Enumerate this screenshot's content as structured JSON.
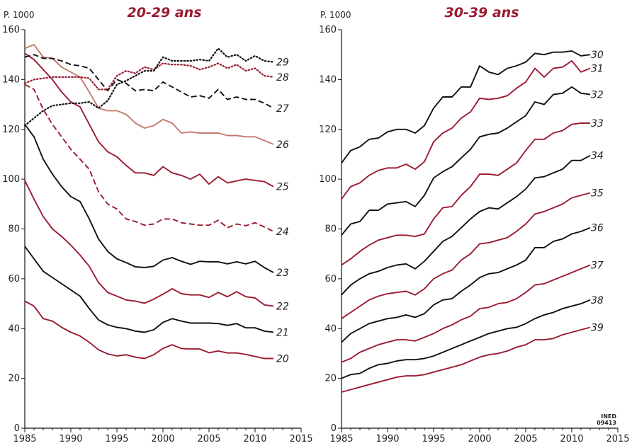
{
  "colors": {
    "dark_red": "#9b1b30",
    "light_red": "#c47a6e",
    "black": "#111111"
  },
  "credit": {
    "line1": "INED",
    "line2": "09413"
  },
  "chart_data": [
    {
      "type": "line",
      "title": "20-29 ans",
      "ylabel": "P. 1000",
      "xlim": [
        1985,
        2015
      ],
      "ylim": [
        0,
        160
      ],
      "x_ticks": [
        "1985",
        "1990",
        "1995",
        "2000",
        "2005",
        "2010",
        "2015"
      ],
      "y_ticks": [
        "0",
        "20",
        "40",
        "60",
        "80",
        "100",
        "120",
        "140",
        "160"
      ],
      "x": [
        1985,
        1986,
        1987,
        1988,
        1989,
        1990,
        1991,
        1992,
        1993,
        1994,
        1995,
        1996,
        1997,
        1998,
        1999,
        2000,
        2001,
        2002,
        2003,
        2004,
        2005,
        2006,
        2007,
        2008,
        2009,
        2010,
        2011,
        2012
      ],
      "series": [
        {
          "name": "20",
          "color": "dark_red",
          "style": "solid",
          "values": [
            51,
            49,
            44,
            43,
            40.5,
            38.5,
            37,
            34.5,
            31.5,
            29.8,
            29,
            29.5,
            28.5,
            28,
            29.5,
            32,
            33.5,
            32,
            31.8,
            31.8,
            30.3,
            31,
            30.2,
            30.2,
            29.6,
            28.8,
            28,
            28
          ]
        },
        {
          "name": "21",
          "color": "black",
          "style": "solid",
          "values": [
            73,
            68,
            63,
            60.5,
            58,
            55.5,
            53,
            48,
            43.5,
            41.5,
            40.5,
            40,
            39,
            38.5,
            39.5,
            42.5,
            44,
            43,
            42.2,
            42.2,
            42.2,
            42,
            41.3,
            42,
            40.3,
            40.3,
            39,
            38.5
          ]
        },
        {
          "name": "22",
          "color": "dark_red",
          "style": "solid",
          "values": [
            99.5,
            92,
            85,
            80,
            77,
            73.5,
            69.5,
            65,
            58.5,
            54.5,
            53,
            51.5,
            51,
            50.2,
            51.8,
            53.8,
            56,
            54,
            53.5,
            53.5,
            52.5,
            54.5,
            52.8,
            54.8,
            52.8,
            52.3,
            49.5,
            49
          ]
        },
        {
          "name": "23",
          "color": "black",
          "style": "solid",
          "values": [
            122,
            117,
            108,
            102,
            97,
            93,
            91,
            84,
            76,
            71,
            68,
            66.5,
            64.8,
            64.5,
            65,
            67.5,
            68.5,
            67,
            65.8,
            67,
            66.8,
            66.8,
            66,
            66.8,
            66,
            67,
            64.5,
            62.5
          ]
        },
        {
          "name": "24",
          "color": "dark_red",
          "style": "dashed",
          "values": [
            138,
            136,
            128,
            122,
            117,
            112,
            108,
            104,
            95,
            90,
            88,
            84,
            83,
            81.5,
            82,
            84,
            84,
            82.5,
            82,
            81.5,
            81.5,
            83.5,
            80.5,
            82,
            81.3,
            82.5,
            80.8,
            79
          ]
        },
        {
          "name": "25",
          "color": "dark_red",
          "style": "solid",
          "values": [
            150.5,
            148,
            144,
            140,
            135,
            131,
            129,
            122,
            115,
            111,
            109,
            105.5,
            102.5,
            102.5,
            101.5,
            105,
            102.5,
            101.5,
            100,
            102,
            98,
            101,
            98.5,
            99.3,
            100,
            99.5,
            99,
            97
          ]
        },
        {
          "name": "26",
          "color": "light_red",
          "style": "solid",
          "values": [
            152.5,
            154,
            149,
            148.5,
            145,
            143,
            141,
            135,
            128.5,
            127.5,
            127.5,
            126,
            122.5,
            120.5,
            121.5,
            124,
            122.5,
            118.5,
            119,
            118.5,
            118.5,
            118.5,
            117.5,
            117.5,
            117,
            117,
            115.5,
            114
          ]
        },
        {
          "name": "27",
          "color": "black",
          "style": "dashed",
          "values": [
            149,
            150,
            148.5,
            148.5,
            147.5,
            146,
            145.5,
            144.5,
            140,
            135.5,
            140,
            138.5,
            135.5,
            136,
            135.5,
            139,
            137,
            135,
            133,
            133.5,
            132.5,
            136,
            132,
            133,
            132,
            132,
            130.5,
            128.5
          ]
        },
        {
          "name": "28",
          "color": "dark_red",
          "style": "dotted",
          "values": [
            138.5,
            140,
            140.5,
            141,
            141,
            141,
            141,
            140.5,
            136,
            136,
            141.5,
            143.5,
            142.5,
            145,
            144,
            146.5,
            146,
            146,
            145.5,
            144,
            145,
            146.5,
            144.5,
            146,
            143.5,
            144.5,
            141.5,
            141
          ]
        },
        {
          "name": "29",
          "color": "black",
          "style": "dotted",
          "values": [
            121.5,
            124.5,
            127.5,
            129.5,
            130,
            130.5,
            130.5,
            131,
            128.5,
            131.5,
            138,
            139.5,
            141.5,
            143.5,
            143.5,
            149,
            147.5,
            147.5,
            147.5,
            148,
            147.5,
            152.5,
            149,
            150,
            147.5,
            149.5,
            147.5,
            147
          ]
        }
      ]
    },
    {
      "type": "line",
      "title": "30-39 ans",
      "ylabel": "P. 1000",
      "xlim": [
        1985,
        2015
      ],
      "ylim": [
        0,
        160
      ],
      "x_ticks": [
        "1985",
        "1990",
        "1995",
        "2000",
        "2005",
        "2010",
        "2015"
      ],
      "y_ticks": [
        "0",
        "20",
        "40",
        "60",
        "80",
        "100",
        "120",
        "140",
        "160"
      ],
      "x": [
        1985,
        1986,
        1987,
        1988,
        1989,
        1990,
        1991,
        1992,
        1993,
        1994,
        1995,
        1996,
        1997,
        1998,
        1999,
        2000,
        2001,
        2002,
        2003,
        2004,
        2005,
        2006,
        2007,
        2008,
        2009,
        2010,
        2011,
        2012
      ],
      "series": [
        {
          "name": "30",
          "color": "black",
          "style": "solid",
          "values": [
            106.5,
            111.5,
            113,
            116,
            116.5,
            119,
            120,
            120,
            118.5,
            121.5,
            128.5,
            133,
            133,
            137,
            137,
            145.5,
            143,
            142,
            144.5,
            145.5,
            147,
            150.5,
            150,
            151,
            151,
            151.5,
            149.5,
            150
          ]
        },
        {
          "name": "31",
          "color": "dark_red",
          "style": "solid",
          "values": [
            92,
            97,
            98.5,
            101.5,
            103.5,
            104.5,
            104.5,
            106,
            104,
            107,
            115,
            118.5,
            120.5,
            124.5,
            127,
            132.5,
            132,
            132.5,
            133.5,
            136.5,
            139,
            144.5,
            141,
            144.5,
            145,
            147.5,
            143,
            144.5
          ]
        },
        {
          "name": "32",
          "color": "black",
          "style": "solid",
          "values": [
            77.5,
            82,
            83,
            87.5,
            87.5,
            90,
            90.5,
            91,
            89,
            93.5,
            100.5,
            103,
            105,
            108.5,
            112,
            117,
            118,
            118.5,
            120.5,
            123,
            125.5,
            131,
            130,
            134,
            134.5,
            137,
            134.5,
            134
          ]
        },
        {
          "name": "33",
          "color": "dark_red",
          "style": "solid",
          "values": [
            65.5,
            68,
            71,
            73.5,
            75.5,
            76.5,
            77.5,
            77.5,
            77,
            78,
            84,
            88.5,
            89,
            93.5,
            97,
            102,
            102,
            101.5,
            104,
            106.5,
            111.5,
            116,
            116,
            118.5,
            119.5,
            122,
            122.5,
            122.5
          ]
        },
        {
          "name": "34",
          "color": "black",
          "style": "solid",
          "values": [
            53.5,
            57.5,
            60,
            62,
            63,
            64.5,
            65.5,
            66,
            64,
            67,
            71,
            75,
            77,
            80.5,
            84,
            87,
            88.5,
            88,
            90.5,
            93,
            96,
            100.5,
            101,
            102.5,
            104,
            107.5,
            107.5,
            109.5
          ]
        },
        {
          "name": "35",
          "color": "dark_red",
          "style": "solid",
          "values": [
            44,
            46.5,
            49,
            51.5,
            53,
            54,
            54.5,
            55,
            53.5,
            56,
            60,
            62,
            63.5,
            67.5,
            70,
            74,
            74.5,
            75.5,
            76.5,
            79,
            82,
            86,
            87,
            88.5,
            90,
            92.5,
            93.5,
            94.5
          ]
        },
        {
          "name": "36",
          "color": "black",
          "style": "solid",
          "values": [
            34.5,
            38,
            40,
            42,
            43,
            44,
            44.5,
            45.5,
            44.5,
            46,
            49.5,
            51.5,
            52,
            55,
            57.5,
            60.5,
            62,
            62.5,
            64,
            65.5,
            67.5,
            72.5,
            72.5,
            75,
            76,
            78,
            79,
            80.5
          ]
        },
        {
          "name": "37",
          "color": "dark_red",
          "style": "solid",
          "values": [
            26.5,
            28,
            30.5,
            32,
            33.5,
            34.5,
            35.5,
            35.5,
            35,
            36.5,
            38,
            40,
            41.5,
            43.5,
            45,
            48,
            48.5,
            50,
            50.5,
            52,
            54.5,
            57.5,
            58,
            59.5,
            61,
            62.5,
            64,
            65.5
          ]
        },
        {
          "name": "38",
          "color": "black",
          "style": "solid",
          "values": [
            20,
            21.5,
            22,
            24,
            25.5,
            26,
            27,
            27.5,
            27.5,
            28,
            29,
            30.5,
            32,
            33.5,
            35,
            36.5,
            38,
            39,
            40,
            40.5,
            42,
            44,
            45.5,
            46.5,
            48,
            49,
            50,
            51.5
          ]
        },
        {
          "name": "39",
          "color": "dark_red",
          "style": "solid",
          "values": [
            14.5,
            15.5,
            16.5,
            17.5,
            18.5,
            19.5,
            20.5,
            21,
            21,
            21.5,
            22.5,
            23.5,
            24.5,
            25.5,
            27,
            28.5,
            29.5,
            30,
            31,
            32.5,
            33.5,
            35.5,
            35.5,
            36,
            37.5,
            38.5,
            39.5,
            40.5
          ]
        }
      ]
    }
  ]
}
